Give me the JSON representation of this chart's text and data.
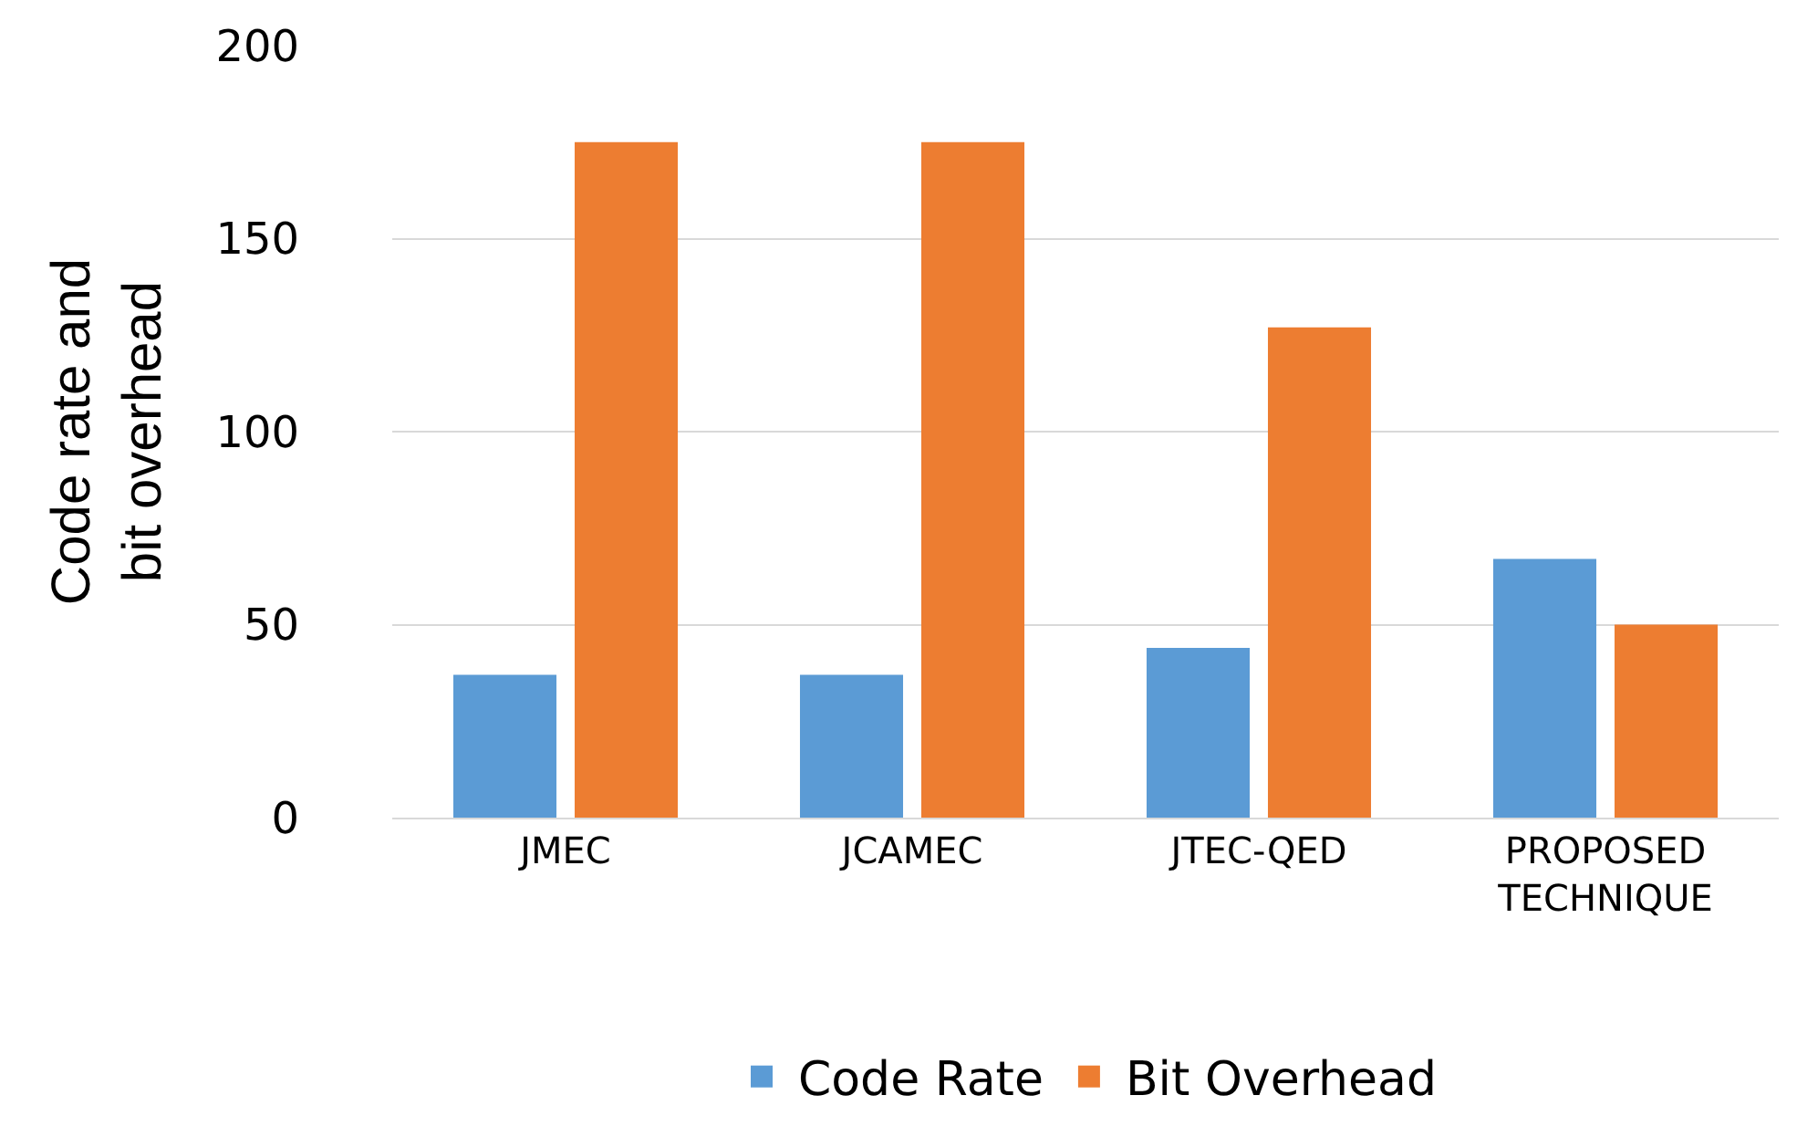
{
  "chart_data": {
    "type": "bar",
    "ylabel": "Code rate and bit overhead",
    "categories": [
      "JMEC",
      "JCAMEC",
      "JTEC-QED",
      "PROPOSED TECHNIQUE"
    ],
    "series": [
      {
        "name": "Code Rate",
        "color": "#5b9bd5",
        "values": [
          37,
          37,
          44,
          67
        ]
      },
      {
        "name": "Bit Overhead",
        "color": "#ed7d31",
        "values": [
          175,
          175,
          127,
          50
        ]
      }
    ],
    "ylim": [
      0,
      200
    ],
    "yticks": [
      0,
      50,
      100,
      150,
      200
    ],
    "grid": "y",
    "legend": "bottom"
  }
}
